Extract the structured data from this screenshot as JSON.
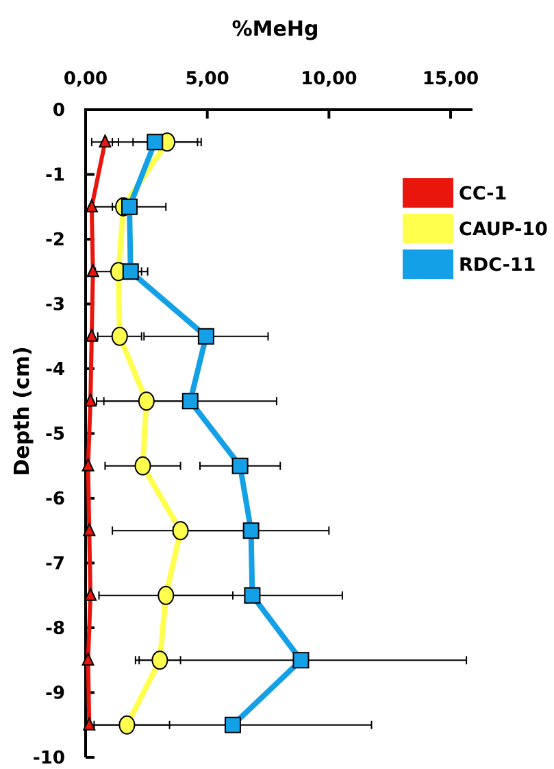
{
  "chart_data": {
    "type": "line",
    "orientation": "vertical-profile",
    "title": "",
    "xlabel": "%MeHg",
    "ylabel": "Depth (cm)",
    "xlim": [
      0,
      15.9
    ],
    "ylim": [
      -10,
      0
    ],
    "x_axis_position": "top",
    "x_ticks": [
      0,
      5,
      10,
      15
    ],
    "x_tick_labels": [
      "0,00",
      "5,00",
      "10,00",
      "15,00"
    ],
    "y_ticks": [
      0,
      -1,
      -2,
      -3,
      -4,
      -5,
      -6,
      -7,
      -8,
      -9,
      -10
    ],
    "y_tick_labels": [
      "0",
      "-1",
      "-2",
      "-3",
      "-4",
      "-5",
      "-6",
      "-7",
      "-8",
      "-9",
      "-10"
    ],
    "grid": false,
    "legend_position": "right",
    "depths": [
      -0.5,
      -1.5,
      -2.5,
      -3.5,
      -4.5,
      -5.5,
      -6.5,
      -7.5,
      -8.5,
      -9.5
    ],
    "series": [
      {
        "name": "CC-1",
        "color": "#e8160c",
        "marker": "triangle",
        "values": [
          0.8,
          0.25,
          0.3,
          0.25,
          0.2,
          0.1,
          0.15,
          0.2,
          0.1,
          0.15
        ],
        "errors": [
          0.55,
          0,
          0,
          0,
          0,
          0,
          0,
          0,
          0,
          0
        ]
      },
      {
        "name": "CAUP-10",
        "color": "#ffff4d",
        "marker": "circle",
        "values": [
          3.35,
          1.55,
          1.35,
          1.4,
          2.5,
          2.35,
          3.9,
          3.3,
          3.05,
          1.7
        ],
        "errors": [
          1.4,
          0.45,
          0.95,
          0.9,
          2.05,
          1.55,
          2.8,
          2.75,
          0.85,
          1.75
        ]
      },
      {
        "name": "RDC-11",
        "color": "#14a0e6",
        "marker": "square",
        "values": [
          2.85,
          1.8,
          1.85,
          4.95,
          4.3,
          6.35,
          6.8,
          6.85,
          8.85,
          6.05
        ],
        "errors": [
          1.75,
          1.5,
          0.7,
          2.55,
          3.55,
          1.65,
          3.2,
          3.7,
          6.8,
          5.7
        ]
      }
    ]
  }
}
